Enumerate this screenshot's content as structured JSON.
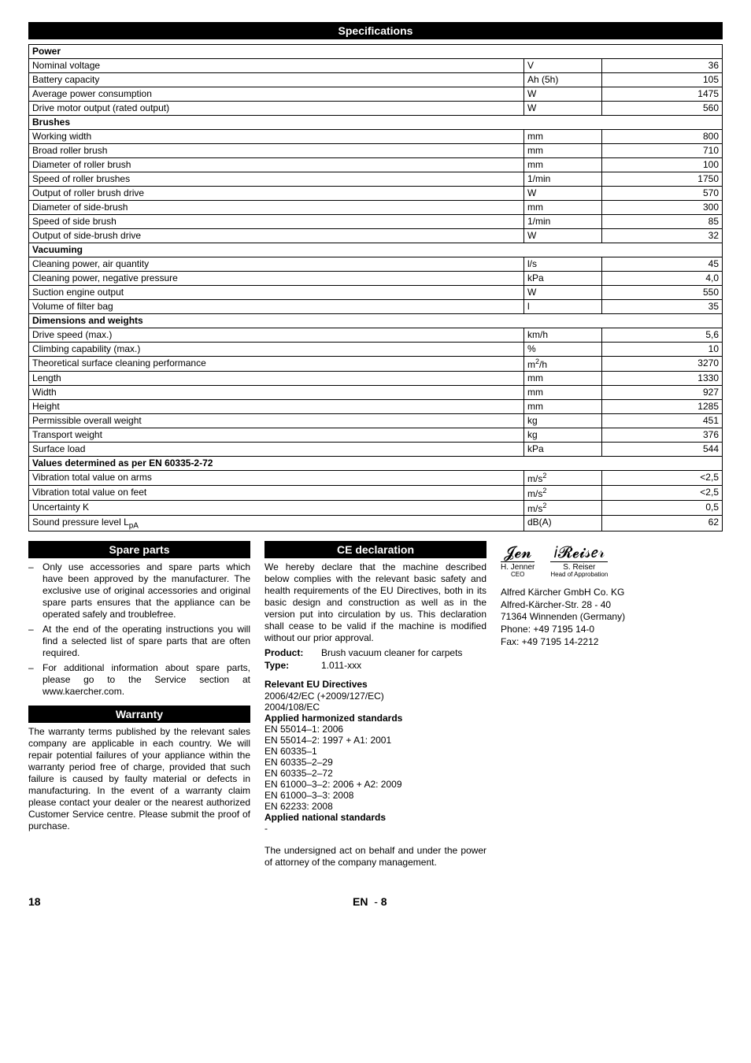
{
  "headers": {
    "specifications": "Specifications",
    "spare_parts": "Spare parts",
    "warranty": "Warranty",
    "ce": "CE declaration"
  },
  "spec_groups": [
    {
      "group": "Power",
      "rows": [
        {
          "label": "Nominal voltage",
          "unit": "V",
          "value": "36"
        },
        {
          "label": "Battery capacity",
          "unit": "Ah (5h)",
          "value": "105"
        },
        {
          "label": "Average power consumption",
          "unit": "W",
          "value": "1475"
        },
        {
          "label": "Drive motor output (rated output)",
          "unit": "W",
          "value": "560"
        }
      ]
    },
    {
      "group": "Brushes",
      "rows": [
        {
          "label": "Working width",
          "unit": "mm",
          "value": "800"
        },
        {
          "label": "Broad roller brush",
          "unit": "mm",
          "value": "710"
        },
        {
          "label": "Diameter of roller brush",
          "unit": "mm",
          "value": "100"
        },
        {
          "label": "Speed of roller brushes",
          "unit": "1/min",
          "value": "1750"
        },
        {
          "label": "Output of roller brush drive",
          "unit": "W",
          "value": "570"
        },
        {
          "label": "Diameter of side-brush",
          "unit": "mm",
          "value": "300"
        },
        {
          "label": "Speed of side brush",
          "unit": "1/min",
          "value": "85"
        },
        {
          "label": "Output of side-brush drive",
          "unit": "W",
          "value": "32"
        }
      ]
    },
    {
      "group": "Vacuuming",
      "rows": [
        {
          "label": "Cleaning power, air quantity",
          "unit": "l/s",
          "value": "45"
        },
        {
          "label": "Cleaning power, negative pressure",
          "unit": "kPa",
          "value": "4,0"
        },
        {
          "label": "Suction engine output",
          "unit": "W",
          "value": "550"
        },
        {
          "label": "Volume of filter bag",
          "unit": "l",
          "value": "35"
        }
      ]
    },
    {
      "group": "Dimensions and weights",
      "rows": [
        {
          "label": "Drive speed (max.)",
          "unit": "km/h",
          "value": "5,6"
        },
        {
          "label": "Climbing capability (max.)",
          "unit": "%",
          "value": "10"
        },
        {
          "label": "Theoretical surface cleaning performance",
          "unit": "m²/h",
          "value": "3270"
        },
        {
          "label": "Length",
          "unit": "mm",
          "value": "1330"
        },
        {
          "label": "Width",
          "unit": "mm",
          "value": "927"
        },
        {
          "label": "Height",
          "unit": "mm",
          "value": "1285"
        },
        {
          "label": "Permissible overall weight",
          "unit": "kg",
          "value": "451"
        },
        {
          "label": "Transport weight",
          "unit": "kg",
          "value": "376"
        },
        {
          "label": "Surface load",
          "unit": "kPa",
          "value": "544"
        }
      ]
    },
    {
      "group": "Values determined as per EN 60335-2-72",
      "rows": [
        {
          "label": "Vibration total value on arms",
          "unit": "m/s²",
          "value": "<2,5"
        },
        {
          "label": "Vibration total value on feet",
          "unit": "m/s²",
          "value": "<2,5"
        },
        {
          "label": "Uncertainty K",
          "unit": "m/s²",
          "value": "0,5"
        },
        {
          "label": "Sound pressure level LpA",
          "unit": "dB(A)",
          "value": "62"
        }
      ]
    }
  ],
  "spare_parts_items": [
    "Only use accessories and spare parts which have been approved by the manufacturer. The exclusive use of original accessories and original spare parts ensures that the appliance can be operated safely and troublefree.",
    "At the end of the operating instructions you will find a selected list of spare parts that are often required.",
    "For additional information about spare parts, please go to the Service section at www.kaercher.com."
  ],
  "warranty_text": "The warranty terms published by the relevant sales company are applicable in each country. We will repair potential failures of your appliance within the warranty period free of charge, provided that such failure is caused by faulty material or defects in manufacturing. In the event of a warranty claim please contact your dealer or the nearest authorized Customer Service centre. Please submit the proof of purchase.",
  "ce": {
    "intro": "We hereby declare that the machine described below complies with the relevant basic safety and health requirements of the EU Directives, both in its basic design and construction as well as in the version put into circulation by us. This declaration shall cease to be valid if the machine is modified without our prior approval.",
    "product_label": "Product:",
    "product_value": "Brush vacuum cleaner for carpets",
    "type_label": "Type:",
    "type_value": "1.011-xxx",
    "eu_dir_title": "Relevant EU Directives",
    "eu_dir_1": "2006/42/EC (+2009/127/EC)",
    "eu_dir_2": "2004/108/EC",
    "harm_title": "Applied harmonized standards",
    "harm": [
      "EN 55014–1: 2006",
      "EN 55014–2: 1997 + A1: 2001",
      "EN 60335–1",
      "EN 60335–2–29",
      "EN 60335–2–72",
      "EN 61000–3–2: 2006 + A2: 2009",
      "EN 61000–3–3: 2008",
      "EN 62233: 2008"
    ],
    "nat_title": "Applied national standards",
    "nat_value": "-",
    "undersigned": "The undersigned act on behalf and under the power of attorney of the company management."
  },
  "signatures": {
    "left_name": "H. Jenner",
    "left_role": "CEO",
    "right_name": "S. Reiser",
    "right_role": "Head of Approbation"
  },
  "company": {
    "l1": "Alfred Kärcher GmbH Co. KG",
    "l2": "Alfred-Kärcher-Str. 28 - 40",
    "l3": "71364 Winnenden (Germany)",
    "l4": "Phone: +49 7195 14-0",
    "l5": "Fax: +49 7195 14-2212"
  },
  "footer": {
    "page_left": "18",
    "lang": "EN",
    "sep": "-",
    "page_right": "8"
  }
}
